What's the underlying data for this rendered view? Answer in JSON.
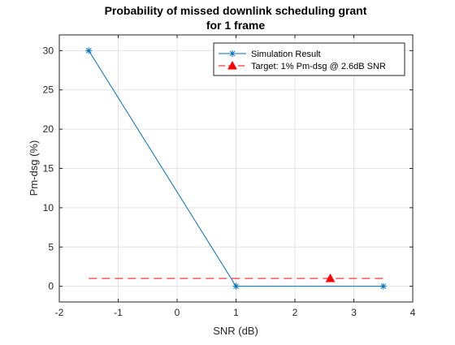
{
  "chart_data": {
    "type": "line",
    "title_line1": "Probability of missed downlink scheduling grant",
    "title_line2": "for 1 frame",
    "xlabel": "SNR (dB)",
    "ylabel": "Pm-dsg (%)",
    "xlim": [
      -2,
      4
    ],
    "ylim": [
      -2,
      32
    ],
    "xticks": [
      -2,
      -1,
      0,
      1,
      2,
      3,
      4
    ],
    "yticks": [
      0,
      5,
      10,
      15,
      20,
      25,
      30
    ],
    "grid": true,
    "legend_position": "top-right",
    "series": [
      {
        "name": "Simulation Result",
        "x": [
          -1.5,
          1,
          3.5
        ],
        "y": [
          30,
          0,
          0
        ],
        "color": "#0072BD",
        "line_style": "solid",
        "marker": "asterisk"
      },
      {
        "name": "Target: 1% Pm-dsg @ 2.6dB SNR",
        "x": [
          -1.5,
          3.5
        ],
        "y": [
          1,
          1
        ],
        "color": "#FF0000",
        "line_style": "dashed",
        "marker": "none"
      }
    ],
    "points": [
      {
        "x": 2.6,
        "y": 1,
        "color": "#FF0000",
        "marker": "triangle"
      }
    ]
  }
}
